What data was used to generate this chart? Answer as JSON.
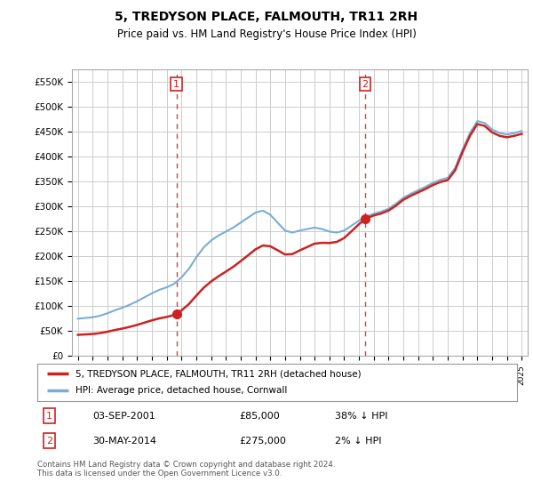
{
  "title": "5, TREDYSON PLACE, FALMOUTH, TR11 2RH",
  "subtitle": "Price paid vs. HM Land Registry's House Price Index (HPI)",
  "ylim": [
    0,
    575000
  ],
  "yticks": [
    0,
    50000,
    100000,
    150000,
    200000,
    250000,
    300000,
    350000,
    400000,
    450000,
    500000,
    550000
  ],
  "ytick_labels": [
    "£0",
    "£50K",
    "£100K",
    "£150K",
    "£200K",
    "£250K",
    "£300K",
    "£350K",
    "£400K",
    "£450K",
    "£500K",
    "£550K"
  ],
  "hpi_color": "#7aadd4",
  "price_color": "#cc2222",
  "dashed_line_color": "#cc4444",
  "marker_color": "#cc2222",
  "background_color": "#ffffff",
  "grid_color": "#cccccc",
  "sale1_date_num": 2001.67,
  "sale1_price": 85000,
  "sale2_date_num": 2014.41,
  "sale2_price": 275000,
  "legend_label1": "5, TREDYSON PLACE, FALMOUTH, TR11 2RH (detached house)",
  "legend_label2": "HPI: Average price, detached house, Cornwall",
  "table_row1": [
    "1",
    "03-SEP-2001",
    "£85,000",
    "38% ↓ HPI"
  ],
  "table_row2": [
    "2",
    "30-MAY-2014",
    "£275,000",
    "2% ↓ HPI"
  ],
  "footnote": "Contains HM Land Registry data © Crown copyright and database right 2024.\nThis data is licensed under the Open Government Licence v3.0.",
  "title_fontsize": 10,
  "subtitle_fontsize": 8.5,
  "tick_fontsize": 7.5
}
